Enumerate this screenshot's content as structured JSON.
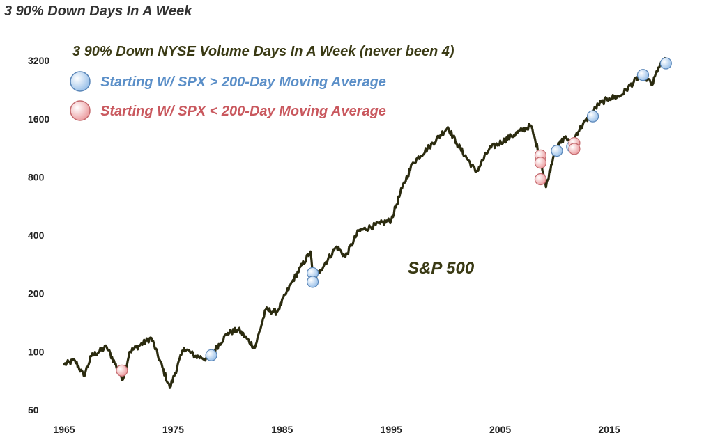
{
  "page": {
    "title": "3 90% Down Days In A Week"
  },
  "chart_data": {
    "type": "line",
    "title": "3 90% Down NYSE Volume Days In A Week (never been 4)",
    "series_label": "S&P 500",
    "y_scale": "log",
    "ylim": [
      50,
      3600
    ],
    "xlim": [
      1965,
      2020.5
    ],
    "y_ticks": [
      50,
      100,
      200,
      400,
      800,
      1600,
      3200
    ],
    "x_ticks": [
      1965,
      1975,
      1985,
      1995,
      2005,
      2015
    ],
    "colors": {
      "line": "#2b2b0f",
      "above": "#9ec3ea",
      "above_stroke": "#5a86b8",
      "above_text": "#5b8fc8",
      "below": "#eda2a5",
      "below_stroke": "#c46a6e",
      "below_text": "#c9585e"
    },
    "legend": [
      {
        "label": "Starting W/ SPX > 200-Day Moving Average",
        "group": "above"
      },
      {
        "label": "Starting W/ SPX < 200-Day Moving Average",
        "group": "below"
      }
    ],
    "series": [
      {
        "name": "S&P 500",
        "x": [
          1965,
          1966,
          1966.8,
          1967.5,
          1968.9,
          1970.4,
          1971,
          1973,
          1974.7,
          1976,
          1977,
          1978.2,
          1980,
          1981,
          1982.5,
          1983.5,
          1984.5,
          1986,
          1987.6,
          1987.85,
          1988.5,
          1990,
          1990.8,
          1992,
          1994,
          1995,
          1996,
          1997,
          1998.5,
          2000.2,
          2001,
          2002.8,
          2004,
          2006,
          2007.8,
          2008.7,
          2009.2,
          2010,
          2011,
          2011.6,
          2012,
          2014,
          2015,
          2016,
          2018,
          2018.95,
          2019.5,
          2020.2
        ],
        "values": [
          86,
          90,
          75,
          95,
          106,
          72,
          100,
          118,
          65,
          105,
          95,
          92,
          125,
          130,
          105,
          165,
          160,
          235,
          330,
          230,
          265,
          350,
          310,
          420,
          460,
          480,
          700,
          950,
          1150,
          1450,
          1200,
          850,
          1120,
          1300,
          1480,
          1000,
          710,
          1100,
          1300,
          1150,
          1350,
          1900,
          2050,
          2100,
          2750,
          2400,
          2950,
          3250
        ]
      }
    ],
    "markers": [
      {
        "date": 1970.3,
        "value": 80,
        "group": "below"
      },
      {
        "date": 1978.5,
        "value": 96,
        "group": "above"
      },
      {
        "date": 1987.8,
        "value": 255,
        "group": "above"
      },
      {
        "date": 1987.8,
        "value": 230,
        "group": "above"
      },
      {
        "date": 2008.7,
        "value": 1035,
        "group": "below"
      },
      {
        "date": 2008.7,
        "value": 950,
        "group": "below"
      },
      {
        "date": 2008.7,
        "value": 780,
        "group": "below"
      },
      {
        "date": 2010.2,
        "value": 1095,
        "group": "above"
      },
      {
        "date": 2011.6,
        "value": 1150,
        "group": "above"
      },
      {
        "date": 2011.8,
        "value": 1200,
        "group": "below"
      },
      {
        "date": 2011.8,
        "value": 1120,
        "group": "below"
      },
      {
        "date": 2013.5,
        "value": 1650,
        "group": "above"
      },
      {
        "date": 2018.1,
        "value": 2700,
        "group": "above"
      },
      {
        "date": 2020.2,
        "value": 3100,
        "group": "above"
      }
    ]
  }
}
